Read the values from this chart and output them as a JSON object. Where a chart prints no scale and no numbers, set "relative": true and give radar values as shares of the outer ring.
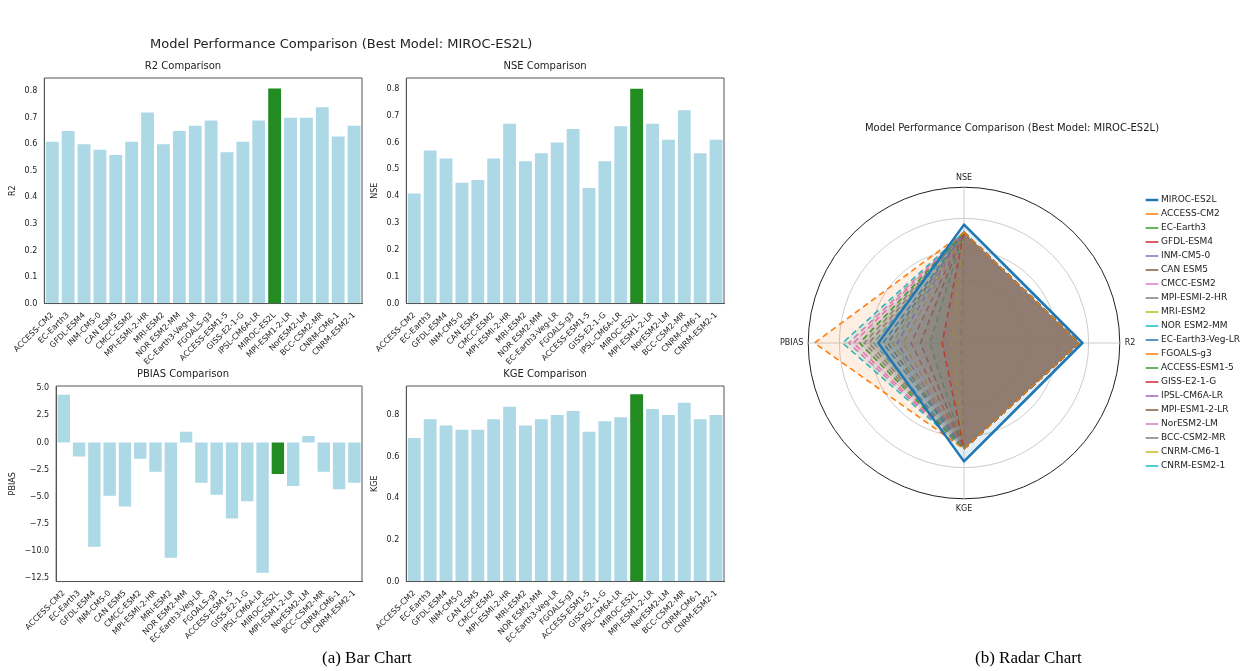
{
  "chart_data": [
    {
      "type": "bar",
      "title": "R2 Comparison",
      "ylabel": "R2",
      "annotations": [
        "Model Performance Comparison (Best Model: MIROC-ES2L)",
        "(a) Bar Chart"
      ],
      "categories": [
        "ACCESS-CM2",
        "EC-Earth3",
        "GFDL-ESM4",
        "INM-CM5-0",
        "CAN ESM5",
        "CMCC-ESM2",
        "MPI-ESMI-2-HR",
        "MRI-ESM2",
        "NOR ESM2-MM",
        "EC-Earth3-Veg-LR",
        "FGOALS-g3",
        "ACCESS-ESM1-5",
        "GISS-E2-1-G",
        "IPSL-CM6A-LR",
        "MIROC-ES2L",
        "MPI-ESM1-2-LR",
        "NorESM2-LM",
        "BCC-CSM2-MR",
        "CNRM-CM6-1",
        "CNRM-ESM2-1"
      ],
      "values": [
        0.61,
        0.65,
        0.6,
        0.58,
        0.56,
        0.61,
        0.72,
        0.6,
        0.65,
        0.67,
        0.69,
        0.57,
        0.61,
        0.69,
        0.81,
        0.7,
        0.7,
        0.74,
        0.63,
        0.67
      ],
      "colors": [
        "#add8e6",
        "#add8e6",
        "#add8e6",
        "#add8e6",
        "#add8e6",
        "#add8e6",
        "#add8e6",
        "#add8e6",
        "#add8e6",
        "#add8e6",
        "#add8e6",
        "#add8e6",
        "#add8e6",
        "#add8e6",
        "#228b22",
        "#add8e6",
        "#add8e6",
        "#add8e6",
        "#add8e6",
        "#add8e6"
      ],
      "ylim": [
        0,
        0.85
      ],
      "yticks": [
        {
          "value": 0,
          "label": "0.0"
        },
        0.1,
        0.2,
        0.3,
        0.4,
        0.5,
        0.6,
        0.7,
        0.8
      ]
    },
    {
      "type": "bar",
      "title": "NSE Comparison",
      "ylabel": "NSE",
      "categories": [
        "ACCESS-CM2",
        "EC-Earth3",
        "GFDL-ESM4",
        "INM-CM5-0",
        "CAN ESM5",
        "CMCC-ESM2",
        "MPI-ESMI-2-HR",
        "MRI-ESM2",
        "NOR ESM2-MM",
        "EC-Earth3-Veg-LR",
        "FGOALS-g3",
        "ACCESS-ESM1-5",
        "GISS-E2-1-G",
        "IPSL-CM6A-LR",
        "MIROC-ES2L",
        "MPI-ESM1-2-LR",
        "NorESM2-LM",
        "BCC-CSM2-MR",
        "CNRM-CM6-1",
        "CNRM-ESM2-1"
      ],
      "values": [
        0.41,
        0.57,
        0.54,
        0.45,
        0.46,
        0.54,
        0.67,
        0.53,
        0.56,
        0.6,
        0.65,
        0.43,
        0.53,
        0.66,
        0.8,
        0.67,
        0.61,
        0.72,
        0.56,
        0.61
      ],
      "colors": [
        "#add8e6",
        "#add8e6",
        "#add8e6",
        "#add8e6",
        "#add8e6",
        "#add8e6",
        "#add8e6",
        "#add8e6",
        "#add8e6",
        "#add8e6",
        "#add8e6",
        "#add8e6",
        "#add8e6",
        "#add8e6",
        "#228b22",
        "#add8e6",
        "#add8e6",
        "#add8e6",
        "#add8e6",
        "#add8e6"
      ],
      "ylim": [
        0,
        0.84
      ],
      "yticks": [
        {
          "value": 0,
          "label": "0.0"
        },
        0.1,
        0.2,
        0.3,
        0.4,
        0.5,
        0.6,
        0.7,
        0.8
      ]
    },
    {
      "type": "bar",
      "title": "PBIAS Comparison",
      "ylabel": "PBIAS",
      "categories": [
        "ACCESS-CM2",
        "EC-Earth3",
        "GFDL-ESM4",
        "INM-CM5-0",
        "CAN ESM5",
        "CMCC-ESM2",
        "MPI-ESMI-2-HR",
        "MRI-ESM2",
        "NOR ESM2-MM",
        "EC-Earth3-Veg-LR",
        "FGOALS-g3",
        "ACCESS-ESM1-5",
        "GISS-E2-1-G",
        "IPSL-CM6A-LR",
        "MIROC-ES2L",
        "MPI-ESM1-2-LR",
        "NorESM2-LM",
        "BCC-CSM2-MR",
        "CNRM-CM6-1",
        "CNRM-ESM2-1"
      ],
      "values": [
        4.4,
        -1.3,
        -9.6,
        -4.9,
        -5.9,
        -1.5,
        -2.7,
        -10.6,
        1.0,
        -3.7,
        -4.8,
        -7.0,
        -5.4,
        -12.0,
        -2.9,
        -4.0,
        0.6,
        -2.7,
        -4.3,
        -3.7
      ],
      "colors": [
        "#add8e6",
        "#add8e6",
        "#add8e6",
        "#add8e6",
        "#add8e6",
        "#add8e6",
        "#add8e6",
        "#add8e6",
        "#add8e6",
        "#add8e6",
        "#add8e6",
        "#add8e6",
        "#add8e6",
        "#add8e6",
        "#228b22",
        "#add8e6",
        "#add8e6",
        "#add8e6",
        "#add8e6",
        "#add8e6"
      ],
      "ylim": [
        -12.8,
        5.2
      ],
      "yticks": [
        {
          "value": -12.5,
          "label": "−12.5"
        },
        {
          "value": -10,
          "label": "−10.0"
        },
        {
          "value": -7.5,
          "label": "−7.5"
        },
        {
          "value": -5,
          "label": "−5.0"
        },
        {
          "value": -2.5,
          "label": "−2.5"
        },
        {
          "value": 0,
          "label": "0.0"
        },
        2.5,
        {
          "value": 5,
          "label": "5.0"
        }
      ]
    },
    {
      "type": "bar",
      "title": "KGE Comparison",
      "ylabel": "KGE",
      "categories": [
        "ACCESS-CM2",
        "EC-Earth3",
        "GFDL-ESM4",
        "INM-CM5-0",
        "CAN ESM5",
        "CMCC-ESM2",
        "MPI-ESMI-2-HR",
        "MRI-ESM2",
        "NOR ESM2-MM",
        "EC-Earth3-Veg-LR",
        "FGOALS-g3",
        "ACCESS-ESM1-5",
        "GISS-E2-1-G",
        "IPSL-CM6A-LR",
        "MIROC-ES2L",
        "MPI-ESM1-2-LR",
        "NorESM2-LM",
        "BCC-CSM2-MR",
        "CNRM-CM6-1",
        "CNRM-ESM2-1"
      ],
      "values": [
        0.69,
        0.78,
        0.75,
        0.73,
        0.73,
        0.78,
        0.84,
        0.75,
        0.78,
        0.8,
        0.82,
        0.72,
        0.77,
        0.79,
        0.9,
        0.83,
        0.8,
        0.86,
        0.78,
        0.8
      ],
      "colors": [
        "#add8e6",
        "#add8e6",
        "#add8e6",
        "#add8e6",
        "#add8e6",
        "#add8e6",
        "#add8e6",
        "#add8e6",
        "#add8e6",
        "#add8e6",
        "#add8e6",
        "#add8e6",
        "#add8e6",
        "#add8e6",
        "#228b22",
        "#add8e6",
        "#add8e6",
        "#add8e6",
        "#add8e6",
        "#add8e6"
      ],
      "ylim": [
        0,
        0.94
      ],
      "yticks": [
        {
          "value": 0,
          "label": "0.0"
        },
        {
          "value": 0.2,
          "label": "0.2"
        },
        {
          "value": 0.4,
          "label": "0.4"
        },
        {
          "value": 0.6,
          "label": "0.6"
        },
        {
          "value": 0.8,
          "label": "0.8"
        }
      ]
    },
    {
      "type": "radar",
      "title": "Model Performance Comparison (Best Model: MIROC-ES2L)",
      "annotations": [
        "(b) Radar Chart"
      ],
      "relative": true,
      "grid": true,
      "legend": "right",
      "marker": "none",
      "categories": [
        "NSE",
        "R2",
        "KGE",
        "PBIAS"
      ],
      "series": [
        {
          "name": "MIROC-ES2L",
          "color": "#1f77b4",
          "line_style": "solid",
          "values": [
            0.76,
            0.76,
            0.76,
            0.55
          ]
        },
        {
          "name": "ACCESS-CM2",
          "color": "#ff7f0e",
          "line_style": "dashed",
          "values": [
            0.71,
            0.74,
            0.68,
            0.96
          ]
        },
        {
          "name": "EC-Earth3",
          "color": "#2ca02c",
          "line_style": "dashed",
          "values": [
            0.71,
            0.74,
            0.68,
            0.67
          ]
        },
        {
          "name": "GFDL-ESM4",
          "color": "#d62728",
          "line_style": "dashed",
          "values": [
            0.71,
            0.74,
            0.68,
            0.14
          ]
        },
        {
          "name": "INM-CM5-0",
          "color": "#9467bd",
          "line_style": "dashed",
          "values": [
            0.71,
            0.74,
            0.68,
            0.43
          ]
        },
        {
          "name": "CAN ESM5",
          "color": "#8c564b",
          "line_style": "dashed",
          "values": [
            0.71,
            0.74,
            0.68,
            0.28
          ]
        },
        {
          "name": "CMCC-ESM2",
          "color": "#e377c2",
          "line_style": "dashed",
          "values": [
            0.71,
            0.74,
            0.68,
            0.71
          ]
        },
        {
          "name": "MPI-ESMI-2-HR",
          "color": "#7f7f7f",
          "line_style": "dashed",
          "values": [
            0.71,
            0.74,
            0.68,
            0.61
          ]
        },
        {
          "name": "MRI-ESM2",
          "color": "#bcbd22",
          "line_style": "dashed",
          "values": [
            0.71,
            0.74,
            0.68,
            0.08
          ]
        },
        {
          "name": "NOR ESM2-MM",
          "color": "#17becf",
          "line_style": "dashed",
          "values": [
            0.71,
            0.74,
            0.68,
            0.78
          ]
        },
        {
          "name": "EC-Earth3-Veg-LR",
          "color": "#1f77b4",
          "line_style": "dashed",
          "values": [
            0.71,
            0.74,
            0.68,
            0.52
          ]
        },
        {
          "name": "FGOALS-g3",
          "color": "#ff7f0e",
          "line_style": "dashed",
          "values": [
            0.71,
            0.74,
            0.68,
            0.39
          ]
        },
        {
          "name": "ACCESS-ESM1-5",
          "color": "#2ca02c",
          "line_style": "dashed",
          "values": [
            0.71,
            0.74,
            0.68,
            0.22
          ]
        },
        {
          "name": "GISS-E2-1-G",
          "color": "#d62728",
          "line_style": "dashed",
          "values": [
            0.71,
            0.74,
            0.68,
            0.34
          ]
        },
        {
          "name": "IPSL-CM6A-LR",
          "color": "#9467bd",
          "line_style": "dashed",
          "values": [
            0.71,
            0.74,
            0.68,
            0.02
          ]
        },
        {
          "name": "MPI-ESM1-2-LR",
          "color": "#8c564b",
          "line_style": "dashed",
          "values": [
            0.71,
            0.74,
            0.68,
            0.49
          ]
        },
        {
          "name": "NorESM2-LM",
          "color": "#e377c2",
          "line_style": "dashed",
          "values": [
            0.71,
            0.74,
            0.68,
            0.74
          ]
        },
        {
          "name": "BCC-CSM2-MR",
          "color": "#7f7f7f",
          "line_style": "dashed",
          "values": [
            0.71,
            0.74,
            0.68,
            0.64
          ]
        },
        {
          "name": "CNRM-CM6-1",
          "color": "#bcbd22",
          "line_style": "dashed",
          "values": [
            0.71,
            0.74,
            0.68,
            0.46
          ]
        },
        {
          "name": "CNRM-ESM2-1",
          "color": "#17becf",
          "line_style": "dashed",
          "values": [
            0.71,
            0.74,
            0.68,
            0.58
          ]
        }
      ]
    }
  ]
}
